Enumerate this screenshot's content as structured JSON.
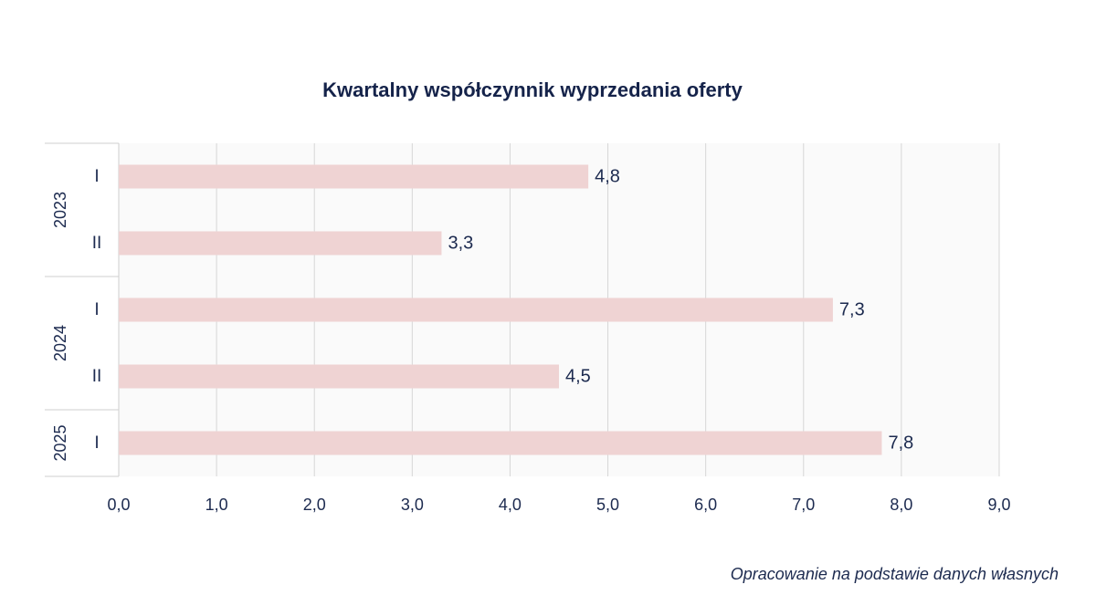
{
  "chart_data": {
    "type": "bar",
    "orientation": "horizontal",
    "title": "Kwartalny współczynnik wyprzedania oferty",
    "groups": [
      {
        "year": "2023",
        "categories": [
          "I",
          "II"
        ],
        "values": [
          4.8,
          3.3
        ],
        "value_labels": [
          "4,8",
          "3,3"
        ]
      },
      {
        "year": "2024",
        "categories": [
          "I",
          "II"
        ],
        "values": [
          7.3,
          4.5
        ],
        "value_labels": [
          "7,3",
          "4,5"
        ]
      },
      {
        "year": "2025",
        "categories": [
          "I"
        ],
        "values": [
          7.8
        ],
        "value_labels": [
          "7,8"
        ]
      }
    ],
    "xlim": [
      0,
      9
    ],
    "x_ticks": [
      "0,0",
      "1,0",
      "2,0",
      "3,0",
      "4,0",
      "5,0",
      "6,0",
      "7,0",
      "8,0",
      "9,0"
    ],
    "xlabel": "",
    "ylabel": "",
    "grid": "vertical",
    "bar_color": "#efd3d3",
    "plot_background": "#fafafa",
    "grid_color": "#d6d6d6",
    "text_color": "#1c2a4f"
  },
  "source_note": "Opracowanie na podstawie danych własnych"
}
